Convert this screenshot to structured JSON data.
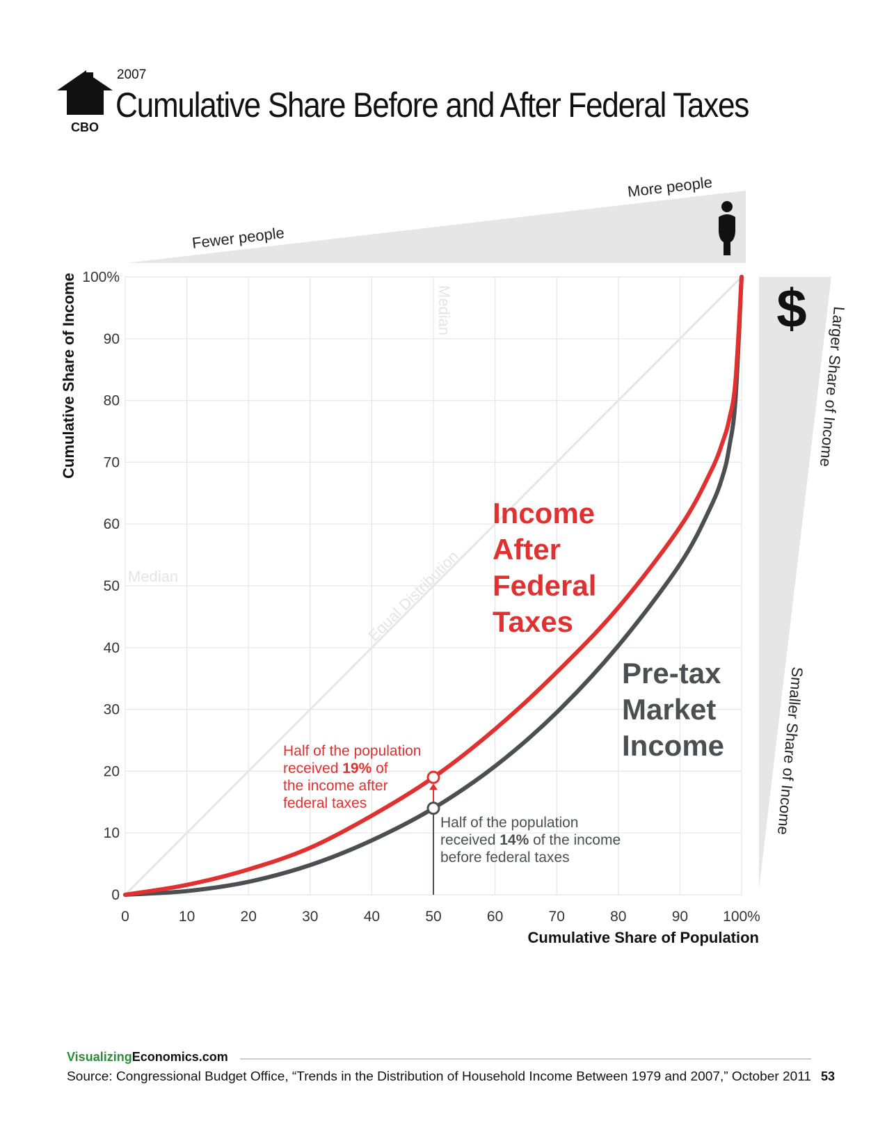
{
  "header": {
    "logo_text": "CBO",
    "year": "2007",
    "title": "Cumulative Share Before and After Federal Taxes"
  },
  "top_wedge": {
    "left_label": "Fewer people",
    "right_label": "More people",
    "icon": "person-icon"
  },
  "side_wedge": {
    "icon": "dollar-icon",
    "icon_glyph": "$",
    "top_label": "Larger Share of Income",
    "bottom_label": "Smaller Share of Income"
  },
  "chart_data": {
    "type": "line",
    "xlabel": "Cumulative Share of Population",
    "ylabel": "Cumulative Share of Income",
    "xlim": [
      0,
      100
    ],
    "ylim": [
      0,
      100
    ],
    "x_ticks": [
      "0",
      "10",
      "20",
      "30",
      "40",
      "50",
      "60",
      "70",
      "80",
      "90",
      "100%"
    ],
    "y_ticks": [
      "0",
      "10",
      "20",
      "30",
      "40",
      "50",
      "60",
      "70",
      "80",
      "90",
      "100%"
    ],
    "grid": true,
    "reference_lines": {
      "equal_label": "Equal Distribution",
      "median_label": "Median"
    },
    "series": [
      {
        "name": "Income After Federal Taxes",
        "name_lines": [
          "Income",
          "After",
          "Federal",
          "Taxes"
        ],
        "color": "#e03030",
        "x": [
          0,
          10,
          20,
          30,
          40,
          50,
          60,
          70,
          80,
          90,
          95,
          97,
          98,
          99,
          100
        ],
        "y": [
          0,
          1.6,
          4.1,
          7.6,
          12.8,
          19,
          26.8,
          36,
          46.5,
          59.5,
          68.5,
          73.5,
          77,
          83,
          100
        ]
      },
      {
        "name": "Pre-tax Market Income",
        "name_lines": [
          "Pre-tax",
          "Market",
          "Income"
        ],
        "color": "#4a4f52",
        "x": [
          0,
          10,
          20,
          30,
          40,
          50,
          60,
          70,
          80,
          90,
          95,
          97,
          98,
          99,
          100
        ],
        "y": [
          0,
          0.6,
          2.1,
          4.8,
          8.8,
          14,
          20.8,
          29.5,
          40.3,
          53.5,
          62.8,
          68,
          72.5,
          80,
          100
        ]
      }
    ],
    "annotations": [
      {
        "x": 50,
        "y": 19,
        "color": "#e03030",
        "lines": [
          {
            "text": "Half of the population"
          },
          {
            "text": "received ",
            "bold": "19%",
            "after": " of"
          },
          {
            "text": "the income after"
          },
          {
            "text": "federal taxes"
          }
        ]
      },
      {
        "x": 50,
        "y": 14,
        "color": "#4a4f52",
        "lines": [
          {
            "text": "Half of the population"
          },
          {
            "text": "received ",
            "bold": "14%",
            "after": " of the income"
          },
          {
            "text": "before federal taxes"
          }
        ]
      }
    ]
  },
  "footer": {
    "brand_green": "Visualizing",
    "brand_black": "Economics.com",
    "source": "Source: Congressional Budget Office, “Trends in the Distribution of Household Income Between 1979 and 2007,” October 2011",
    "page_number": "53"
  }
}
